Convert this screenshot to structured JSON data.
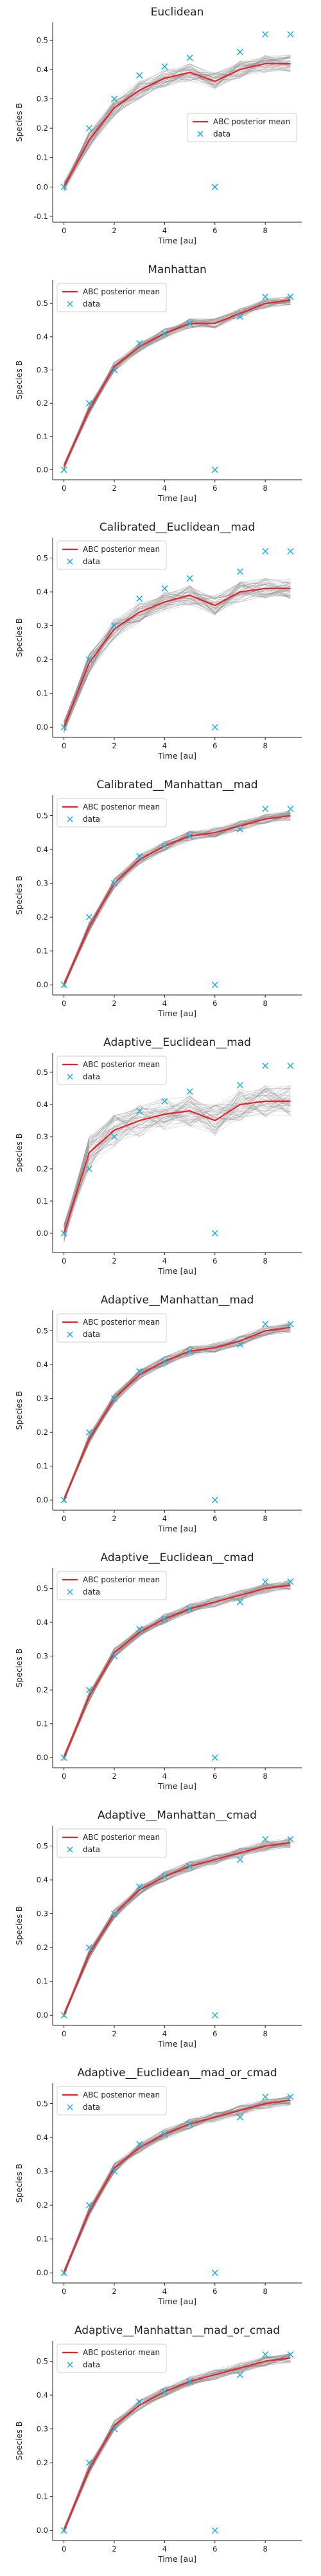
{
  "colors": {
    "posterior_mean": "#e8242b",
    "data": "#1ab0d8",
    "samples": "#8a8a8a",
    "axis": "#222222"
  },
  "chart_data": [
    {
      "type": "line",
      "title": "Euclidean",
      "xlabel": "Time [au]",
      "ylabel": "Species B",
      "xlim": [
        -0.45,
        9.45
      ],
      "ylim": [
        -0.12,
        0.56
      ],
      "xticks": [
        0,
        2,
        4,
        6,
        8
      ],
      "yticks": [
        -0.1,
        0.0,
        0.1,
        0.2,
        0.3,
        0.4,
        0.5
      ],
      "grid": false,
      "legend": "center-right",
      "x": [
        0,
        1,
        2,
        3,
        4,
        5,
        6,
        7,
        8,
        9
      ],
      "series": [
        {
          "name": "ABC posterior mean",
          "kind": "line",
          "values": [
            0.0,
            0.16,
            0.27,
            0.33,
            0.37,
            0.39,
            0.36,
            0.4,
            0.42,
            0.42
          ]
        },
        {
          "name": "data",
          "kind": "scatter",
          "values": [
            0.0,
            0.2,
            0.3,
            0.38,
            0.41,
            0.44,
            0.0,
            0.46,
            0.52,
            0.52
          ]
        }
      ],
      "samples": {
        "count": 60,
        "spread": 0.03
      }
    },
    {
      "type": "line",
      "title": "Manhattan",
      "xlabel": "Time [au]",
      "ylabel": "Species B",
      "xlim": [
        -0.45,
        9.45
      ],
      "ylim": [
        -0.03,
        0.57
      ],
      "xticks": [
        0,
        2,
        4,
        6,
        8
      ],
      "yticks": [
        0.0,
        0.1,
        0.2,
        0.3,
        0.4,
        0.5
      ],
      "grid": false,
      "legend": "upper-left",
      "x": [
        0,
        1,
        2,
        3,
        4,
        5,
        6,
        7,
        8,
        9
      ],
      "series": [
        {
          "name": "ABC posterior mean",
          "kind": "line",
          "values": [
            0.01,
            0.18,
            0.31,
            0.37,
            0.41,
            0.44,
            0.44,
            0.47,
            0.5,
            0.51
          ]
        },
        {
          "name": "data",
          "kind": "scatter",
          "values": [
            0.0,
            0.2,
            0.3,
            0.38,
            0.41,
            0.44,
            0.0,
            0.46,
            0.52,
            0.52
          ]
        }
      ],
      "samples": {
        "count": 60,
        "spread": 0.015
      }
    },
    {
      "type": "line",
      "title": "Calibrated__Euclidean__mad",
      "xlabel": "Time [au]",
      "ylabel": "Species B",
      "xlim": [
        -0.45,
        9.45
      ],
      "ylim": [
        -0.03,
        0.56
      ],
      "xticks": [
        0,
        2,
        4,
        6,
        8
      ],
      "yticks": [
        0.0,
        0.1,
        0.2,
        0.3,
        0.4,
        0.5
      ],
      "grid": false,
      "legend": "upper-left",
      "x": [
        0,
        1,
        2,
        3,
        4,
        5,
        6,
        7,
        8,
        9
      ],
      "series": [
        {
          "name": "ABC posterior mean",
          "kind": "line",
          "values": [
            0.0,
            0.19,
            0.29,
            0.34,
            0.37,
            0.39,
            0.36,
            0.4,
            0.41,
            0.41
          ]
        },
        {
          "name": "data",
          "kind": "scatter",
          "values": [
            0.0,
            0.2,
            0.3,
            0.38,
            0.41,
            0.44,
            0.0,
            0.46,
            0.52,
            0.52
          ]
        }
      ],
      "samples": {
        "count": 60,
        "spread": 0.03
      }
    },
    {
      "type": "line",
      "title": "Calibrated__Manhattan__mad",
      "xlabel": "Time [au]",
      "ylabel": "Species B",
      "xlim": [
        -0.45,
        9.45
      ],
      "ylim": [
        -0.03,
        0.56
      ],
      "xticks": [
        0,
        2,
        4,
        6,
        8
      ],
      "yticks": [
        0.0,
        0.1,
        0.2,
        0.3,
        0.4,
        0.5
      ],
      "grid": false,
      "legend": "upper-left",
      "x": [
        0,
        1,
        2,
        3,
        4,
        5,
        6,
        7,
        8,
        9
      ],
      "series": [
        {
          "name": "ABC posterior mean",
          "kind": "line",
          "values": [
            0.0,
            0.17,
            0.3,
            0.37,
            0.41,
            0.44,
            0.45,
            0.47,
            0.49,
            0.5
          ]
        },
        {
          "name": "data",
          "kind": "scatter",
          "values": [
            0.0,
            0.2,
            0.3,
            0.38,
            0.41,
            0.44,
            0.0,
            0.46,
            0.52,
            0.52
          ]
        }
      ],
      "samples": {
        "count": 60,
        "spread": 0.015
      }
    },
    {
      "type": "line",
      "title": "Adaptive__Euclidean__mad",
      "xlabel": "Time [au]",
      "ylabel": "Species B",
      "xlim": [
        -0.45,
        9.45
      ],
      "ylim": [
        -0.06,
        0.56
      ],
      "xticks": [
        0,
        2,
        4,
        6,
        8
      ],
      "yticks": [
        0.0,
        0.1,
        0.2,
        0.3,
        0.4,
        0.5
      ],
      "grid": false,
      "legend": "upper-left",
      "x": [
        0,
        1,
        2,
        3,
        4,
        5,
        6,
        7,
        8,
        9
      ],
      "series": [
        {
          "name": "ABC posterior mean",
          "kind": "line",
          "values": [
            0.0,
            0.25,
            0.32,
            0.35,
            0.37,
            0.38,
            0.35,
            0.4,
            0.41,
            0.41
          ]
        },
        {
          "name": "data",
          "kind": "scatter",
          "values": [
            0.0,
            0.2,
            0.3,
            0.38,
            0.41,
            0.44,
            0.0,
            0.46,
            0.52,
            0.52
          ]
        }
      ],
      "samples": {
        "count": 60,
        "spread": 0.05
      }
    },
    {
      "type": "line",
      "title": "Adaptive__Manhattan__mad",
      "xlabel": "Time [au]",
      "ylabel": "Species B",
      "xlim": [
        -0.45,
        9.45
      ],
      "ylim": [
        -0.03,
        0.56
      ],
      "xticks": [
        0,
        2,
        4,
        6,
        8
      ],
      "yticks": [
        0.0,
        0.1,
        0.2,
        0.3,
        0.4,
        0.5
      ],
      "grid": false,
      "legend": "upper-left",
      "x": [
        0,
        1,
        2,
        3,
        4,
        5,
        6,
        7,
        8,
        9
      ],
      "series": [
        {
          "name": "ABC posterior mean",
          "kind": "line",
          "values": [
            0.0,
            0.18,
            0.3,
            0.37,
            0.41,
            0.44,
            0.45,
            0.47,
            0.5,
            0.51
          ]
        },
        {
          "name": "data",
          "kind": "scatter",
          "values": [
            0.0,
            0.2,
            0.3,
            0.38,
            0.41,
            0.44,
            0.0,
            0.46,
            0.52,
            0.52
          ]
        }
      ],
      "samples": {
        "count": 60,
        "spread": 0.015
      }
    },
    {
      "type": "line",
      "title": "Adaptive__Euclidean__cmad",
      "xlabel": "Time [au]",
      "ylabel": "Species B",
      "xlim": [
        -0.45,
        9.45
      ],
      "ylim": [
        -0.03,
        0.56
      ],
      "xticks": [
        0,
        2,
        4,
        6,
        8
      ],
      "yticks": [
        0.0,
        0.1,
        0.2,
        0.3,
        0.4,
        0.5
      ],
      "grid": false,
      "legend": "upper-left",
      "x": [
        0,
        1,
        2,
        3,
        4,
        5,
        6,
        7,
        8,
        9
      ],
      "series": [
        {
          "name": "ABC posterior mean",
          "kind": "line",
          "values": [
            0.0,
            0.18,
            0.31,
            0.37,
            0.41,
            0.44,
            0.46,
            0.48,
            0.5,
            0.51
          ]
        },
        {
          "name": "data",
          "kind": "scatter",
          "values": [
            0.0,
            0.2,
            0.3,
            0.38,
            0.41,
            0.44,
            0.0,
            0.46,
            0.52,
            0.52
          ]
        }
      ],
      "samples": {
        "count": 60,
        "spread": 0.015
      }
    },
    {
      "type": "line",
      "title": "Adaptive__Manhattan__cmad",
      "xlabel": "Time [au]",
      "ylabel": "Species B",
      "xlim": [
        -0.45,
        9.45
      ],
      "ylim": [
        -0.03,
        0.56
      ],
      "xticks": [
        0,
        2,
        4,
        6,
        8
      ],
      "yticks": [
        0.0,
        0.1,
        0.2,
        0.3,
        0.4,
        0.5
      ],
      "grid": false,
      "legend": "upper-left",
      "x": [
        0,
        1,
        2,
        3,
        4,
        5,
        6,
        7,
        8,
        9
      ],
      "series": [
        {
          "name": "ABC posterior mean",
          "kind": "line",
          "values": [
            0.0,
            0.18,
            0.3,
            0.37,
            0.41,
            0.44,
            0.46,
            0.48,
            0.5,
            0.51
          ]
        },
        {
          "name": "data",
          "kind": "scatter",
          "values": [
            0.0,
            0.2,
            0.3,
            0.38,
            0.41,
            0.44,
            0.0,
            0.46,
            0.52,
            0.52
          ]
        }
      ],
      "samples": {
        "count": 60,
        "spread": 0.015
      }
    },
    {
      "type": "line",
      "title": "Adaptive__Euclidean__mad_or_cmad",
      "xlabel": "Time [au]",
      "ylabel": "Species B",
      "xlim": [
        -0.45,
        9.45
      ],
      "ylim": [
        -0.03,
        0.56
      ],
      "xticks": [
        0,
        2,
        4,
        6,
        8
      ],
      "yticks": [
        0.0,
        0.1,
        0.2,
        0.3,
        0.4,
        0.5
      ],
      "grid": false,
      "legend": "upper-left",
      "x": [
        0,
        1,
        2,
        3,
        4,
        5,
        6,
        7,
        8,
        9
      ],
      "series": [
        {
          "name": "ABC posterior mean",
          "kind": "line",
          "values": [
            0.0,
            0.18,
            0.31,
            0.37,
            0.41,
            0.44,
            0.46,
            0.48,
            0.5,
            0.51
          ]
        },
        {
          "name": "data",
          "kind": "scatter",
          "values": [
            0.0,
            0.2,
            0.3,
            0.38,
            0.41,
            0.44,
            0.0,
            0.46,
            0.52,
            0.52
          ]
        }
      ],
      "samples": {
        "count": 60,
        "spread": 0.015
      }
    },
    {
      "type": "line",
      "title": "Adaptive__Manhattan__mad_or_cmad",
      "xlabel": "Time [au]",
      "ylabel": "Species B",
      "xlim": [
        -0.45,
        9.45
      ],
      "ylim": [
        -0.03,
        0.56
      ],
      "xticks": [
        0,
        2,
        4,
        6,
        8
      ],
      "yticks": [
        0.0,
        0.1,
        0.2,
        0.3,
        0.4,
        0.5
      ],
      "grid": false,
      "legend": "upper-left",
      "x": [
        0,
        1,
        2,
        3,
        4,
        5,
        6,
        7,
        8,
        9
      ],
      "series": [
        {
          "name": "ABC posterior mean",
          "kind": "line",
          "values": [
            0.0,
            0.18,
            0.31,
            0.37,
            0.41,
            0.44,
            0.46,
            0.48,
            0.5,
            0.51
          ]
        },
        {
          "name": "data",
          "kind": "scatter",
          "values": [
            0.0,
            0.2,
            0.3,
            0.38,
            0.41,
            0.44,
            0.0,
            0.46,
            0.52,
            0.52
          ]
        }
      ],
      "samples": {
        "count": 60,
        "spread": 0.015
      }
    }
  ]
}
